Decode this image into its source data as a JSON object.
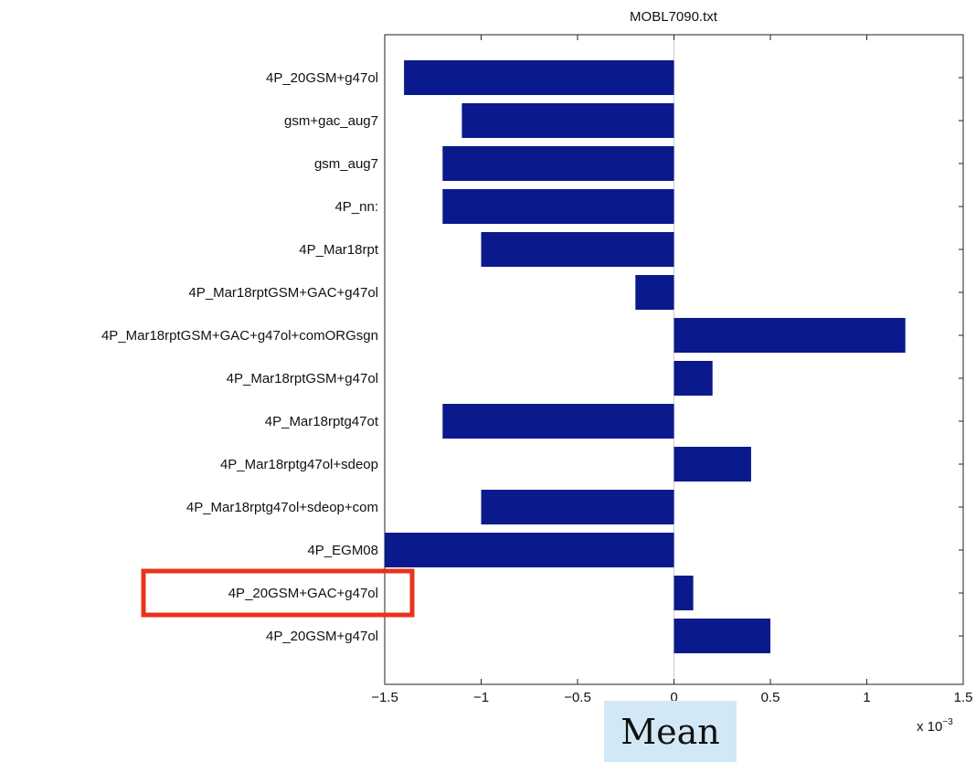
{
  "chart_data": {
    "type": "bar",
    "orientation": "horizontal",
    "title": "MOBL7090.txt",
    "categories": [
      "4P_20GSM+g47ol",
      "gsm+gac_aug7",
      "gsm_aug7",
      "4P_nn:",
      "4P_Mar18rpt",
      "4P_Mar18rptGSM+GAC+g47ol",
      "4P_Mar18rptGSM+GAC+g47ol+comORGsgn",
      "4P_Mar18rptGSM+g47ol",
      "4P_Mar18rptg47ot",
      "4P_Mar18rptg47ol+sdeop",
      "4P_Mar18rptg47ol+sdeop+com",
      "4P_EGM08",
      "4P_20GSM+GAC+g47ol",
      "4P_20GSM+g47ol"
    ],
    "values": [
      -1.4,
      -1.1,
      -1.2,
      -1.2,
      -1.0,
      -0.2,
      1.2,
      0.2,
      -1.2,
      0.4,
      -1.0,
      -1.5,
      0.1,
      0.5
    ],
    "xlim": [
      -1.5,
      1.5
    ],
    "xticks": [
      "−1.5",
      "−1",
      "−0.5",
      "0",
      "0.5",
      "1",
      "1.5"
    ],
    "xtick_values": [
      -1.5,
      -1,
      -0.5,
      0,
      0.5,
      1,
      1.5
    ],
    "x_scale_label": "x 10",
    "x_scale_exponent": "−3",
    "xlabel": "Mean",
    "grid": false,
    "bar_color": "#0a1a8c",
    "highlight_color": "#e8341c",
    "highlighted_category": "4P_20GSM+GAC+g47ol",
    "zero_line_color": "#cccccc",
    "xlabel_background": "#d3e8f7"
  }
}
